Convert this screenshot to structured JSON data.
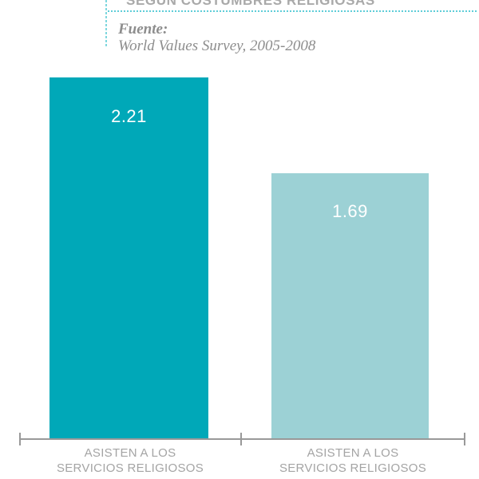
{
  "header": {
    "title": "SEGÚN COSTUMBRES RELIGIOSAS"
  },
  "source": {
    "label": "Fuente:",
    "text": "World Values Survey, 2005-2008"
  },
  "bars": [
    {
      "value": "2.21",
      "color": "#00a8b8",
      "label_line1": "ASISTEN A LOS",
      "label_line2": "SERVICIOS RELIGIOSOS"
    },
    {
      "value": "1.69",
      "color": "#9cd1d5",
      "label_line1": "ASISTEN A LOS",
      "label_line2": "SERVICIOS RELIGIOSOS"
    }
  ],
  "chart_data": {
    "type": "bar",
    "title": "SEGÚN COSTUMBRES RELIGIOSAS",
    "source": "Fuente: World Values Survey, 2005-2008",
    "categories": [
      "ASISTEN A LOS SERVICIOS RELIGIOSOS",
      "ASISTEN A LOS SERVICIOS RELIGIOSOS"
    ],
    "values": [
      2.21,
      1.69
    ],
    "value_labels": [
      "2.21",
      "1.69"
    ],
    "ylim": [
      0,
      2.3
    ],
    "grid": false,
    "legend": false,
    "colors": {
      "bar_dark_teal": "#00a8b8",
      "bar_light_teal": "#9cd1d5",
      "dotted_rule_teal": "#5ecdd8",
      "axis_gray": "#999999",
      "category_label_gray": "#a4a4a4",
      "title_gray": "#a9a9a9",
      "source_gray": "#8d8d8d",
      "value_text": "#ffffff"
    }
  }
}
